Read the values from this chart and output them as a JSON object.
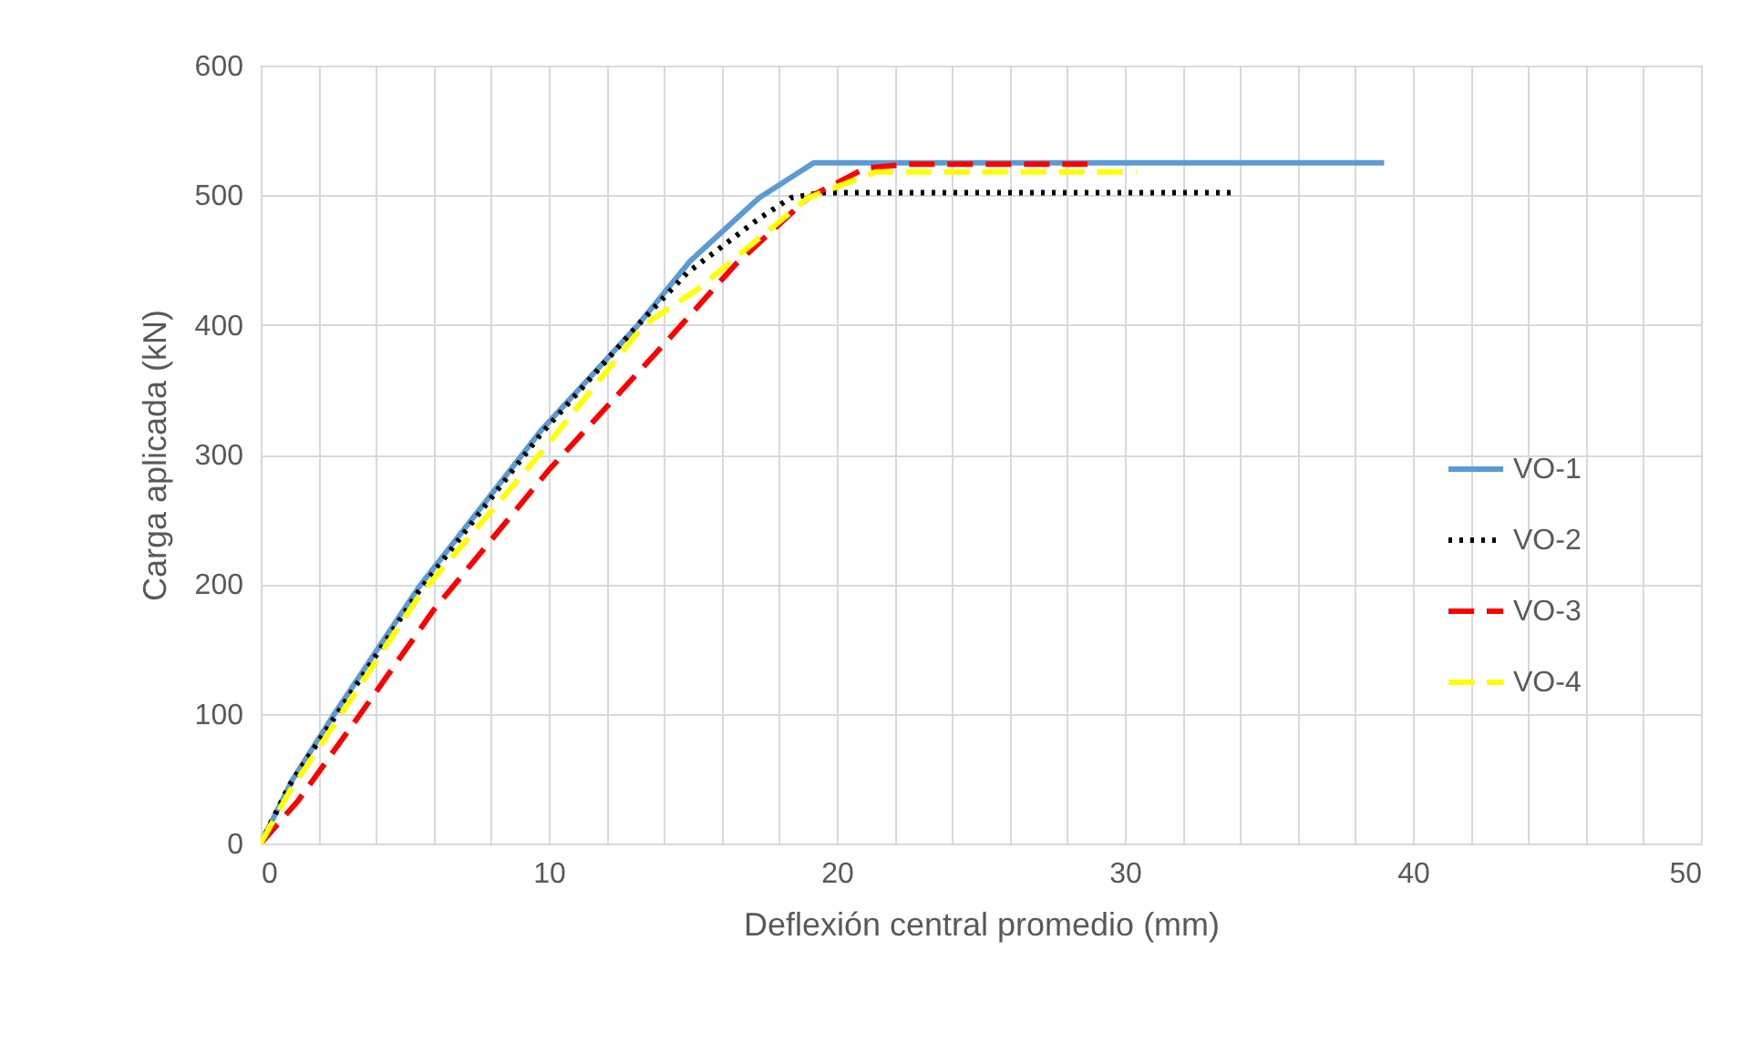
{
  "chart_data": {
    "type": "line",
    "xlabel": "Deflexión central promedio (mm)",
    "ylabel": "Carga aplicada (kN)",
    "xlim": [
      0,
      50
    ],
    "xticks": [
      0,
      {
        "value": 2,
        "label": null
      },
      {
        "value": 4,
        "label": null
      },
      {
        "value": 6,
        "label": null
      },
      {
        "value": 8,
        "label": null
      },
      10,
      {
        "value": 12,
        "label": null
      },
      {
        "value": 14,
        "label": null
      },
      {
        "value": 16,
        "label": null
      },
      {
        "value": 18,
        "label": null
      },
      20,
      {
        "value": 22,
        "label": null
      },
      {
        "value": 24,
        "label": null
      },
      {
        "value": 26,
        "label": null
      },
      {
        "value": 28,
        "label": null
      },
      30,
      {
        "value": 32,
        "label": null
      },
      {
        "value": 34,
        "label": null
      },
      {
        "value": 36,
        "label": null
      },
      {
        "value": 38,
        "label": null
      },
      40,
      {
        "value": 42,
        "label": null
      },
      {
        "value": 44,
        "label": null
      },
      {
        "value": 46,
        "label": null
      },
      {
        "value": 48,
        "label": null
      },
      50
    ],
    "ylim": [
      0,
      600
    ],
    "yticks": [
      0,
      100,
      200,
      300,
      400,
      500,
      600
    ],
    "grid": true,
    "legend": "right",
    "series": [
      {
        "name": "VO-1",
        "color": "#5b9bd5",
        "line_style": "solid",
        "x": [
          0,
          1.1,
          2.5,
          5.5,
          9.75,
          13.1,
          14.9,
          17.3,
          19.2,
          39.0
        ],
        "values": [
          0,
          49,
          98,
          198,
          319,
          400,
          449,
          498,
          525,
          525
        ]
      },
      {
        "name": "VO-2",
        "color": "#000000",
        "line_style": "dotted",
        "x": [
          0,
          1,
          2.5,
          5.5,
          9.7,
          13.1,
          14.8,
          17.3,
          18.4,
          19.5,
          33.7
        ],
        "values": [
          0,
          45,
          95,
          195,
          315,
          400,
          440,
          482,
          498,
          502,
          502
        ]
      },
      {
        "name": "VO-3",
        "color": "#ff0000",
        "line_style": "dashed",
        "x": [
          0,
          1.3,
          3.4,
          6,
          10,
          14,
          16.5,
          19,
          21,
          22.5,
          28.7
        ],
        "values": [
          0,
          33,
          98,
          180,
          288,
          385,
          447,
          498,
          521,
          524,
          524
        ]
      },
      {
        "name": "VO-4",
        "color": "#ffff00",
        "line_style": "dashed",
        "x": [
          0,
          1,
          2.5,
          5.5,
          9.75,
          13.3,
          15.2,
          19,
          21.35,
          30.4
        ],
        "values": [
          0,
          40,
          90,
          191,
          302,
          400,
          428,
          498,
          518,
          518
        ]
      }
    ]
  }
}
